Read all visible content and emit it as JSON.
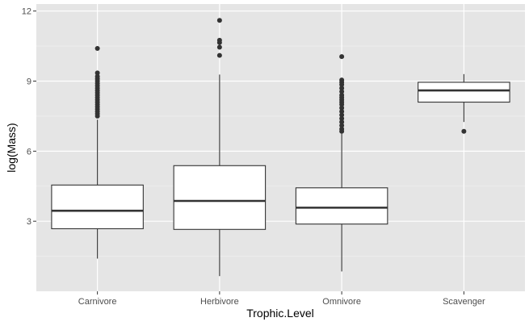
{
  "chart_data": {
    "type": "boxplot",
    "xlabel": "Trophic.Level",
    "ylabel": "log(Mass)",
    "ylim": [
      0,
      12.3
    ],
    "y_ticks": [
      3,
      6,
      9,
      12
    ],
    "y_minor_ticks": [
      1.5,
      4.5,
      7.5,
      10.5
    ],
    "grid": true,
    "categories": [
      "Carnivore",
      "Herbivore",
      "Omnivore",
      "Scavenger"
    ],
    "boxes": [
      {
        "category": "Carnivore",
        "q1": 2.68,
        "median": 3.45,
        "q3": 4.55,
        "whisker_low": 1.4,
        "whisker_high": 7.35,
        "outliers": [
          10.4,
          9.35,
          9.2,
          9.1,
          9.0,
          8.9,
          8.8,
          8.7,
          8.6,
          8.5,
          8.4,
          8.3,
          8.2,
          8.1,
          8.0,
          7.9,
          7.8,
          7.7,
          7.6,
          7.5
        ]
      },
      {
        "category": "Herbivore",
        "q1": 2.65,
        "median": 3.87,
        "q3": 5.38,
        "whisker_low": 0.65,
        "whisker_high": 9.28,
        "outliers": [
          11.6,
          10.75,
          10.65,
          10.45,
          10.1
        ]
      },
      {
        "category": "Omnivore",
        "q1": 2.88,
        "median": 3.58,
        "q3": 4.43,
        "whisker_low": 0.85,
        "whisker_high": 6.75,
        "outliers": [
          10.05,
          9.05,
          8.95,
          8.85,
          8.7,
          8.55,
          8.4,
          8.3,
          8.2,
          8.1,
          8.0,
          7.85,
          7.7,
          7.55,
          7.4,
          7.25,
          7.1,
          6.95,
          6.85
        ]
      },
      {
        "category": "Scavenger",
        "q1": 8.1,
        "median": 8.6,
        "q3": 8.95,
        "whisker_low": 7.25,
        "whisker_high": 9.3,
        "outliers": [
          6.85
        ]
      }
    ],
    "colors": {
      "panel_bg": "#e5e5e5",
      "grid_major": "#ffffff",
      "grid_minor": "#f2f2f2",
      "box_fill": "#ffffff",
      "box_stroke": "#333333",
      "outlier": "#333333",
      "tick_text": "#4d4d4d"
    }
  }
}
